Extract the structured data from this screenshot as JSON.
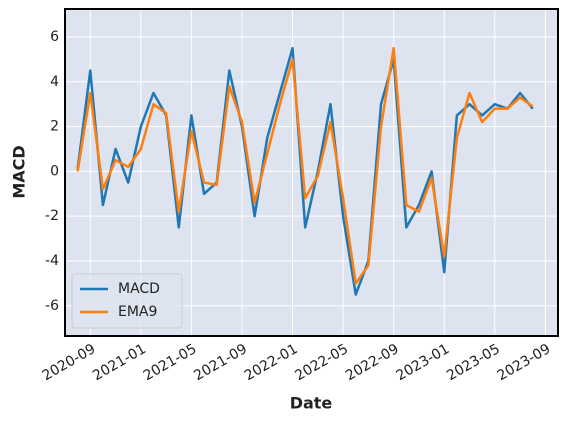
{
  "chart_data": {
    "type": "line",
    "x": [
      "2020-08",
      "2020-09",
      "2020-10",
      "2020-11",
      "2020-12",
      "2021-01",
      "2021-02",
      "2021-03",
      "2021-04",
      "2021-05",
      "2021-06",
      "2021-07",
      "2021-08",
      "2021-09",
      "2021-10",
      "2021-11",
      "2021-12",
      "2022-01",
      "2022-02",
      "2022-03",
      "2022-04",
      "2022-05",
      "2022-06",
      "2022-07",
      "2022-08",
      "2022-09",
      "2022-10",
      "2022-11",
      "2022-12",
      "2023-01",
      "2023-02",
      "2023-03",
      "2023-04",
      "2023-05",
      "2023-06",
      "2023-07",
      "2023-08"
    ],
    "series": [
      {
        "name": "MACD",
        "color": "#1f77b4",
        "values": [
          0.1,
          4.5,
          -1.5,
          1.0,
          -0.5,
          2.0,
          3.5,
          2.5,
          -2.5,
          2.5,
          -1.0,
          -0.5,
          4.5,
          2.0,
          -2.0,
          1.5,
          3.5,
          5.5,
          -2.5,
          0.0,
          3.0,
          -2.0,
          -5.5,
          -4.0,
          3.0,
          5.0,
          -2.5,
          -1.5,
          0.0,
          -4.5,
          2.5,
          3.0,
          2.5,
          3.0,
          2.8,
          3.5,
          2.8
        ]
      },
      {
        "name": "EMA9",
        "color": "#ff7f0e",
        "values": [
          0.0,
          3.5,
          -0.8,
          0.5,
          0.2,
          1.0,
          3.0,
          2.6,
          -1.8,
          1.8,
          -0.5,
          -0.6,
          3.8,
          2.2,
          -1.4,
          0.8,
          3.0,
          5.0,
          -1.2,
          -0.2,
          2.2,
          -1.2,
          -5.0,
          -4.2,
          2.0,
          5.5,
          -1.5,
          -1.8,
          -0.3,
          -3.8,
          1.5,
          3.5,
          2.2,
          2.8,
          2.8,
          3.3,
          2.9
        ]
      }
    ],
    "xlim": [
      "2020-07",
      "2023-10"
    ],
    "xticks": [
      "2020-09",
      "2021-01",
      "2021-05",
      "2021-09",
      "2022-01",
      "2022-05",
      "2022-09",
      "2023-01",
      "2023-05",
      "2023-09"
    ],
    "ylim": [
      -7.35,
      7.25
    ],
    "yticks": [
      -6,
      -4,
      -2,
      0,
      2,
      4,
      6
    ],
    "xlabel": "Date",
    "ylabel": "MACD",
    "grid": true,
    "legend": "lower left"
  }
}
